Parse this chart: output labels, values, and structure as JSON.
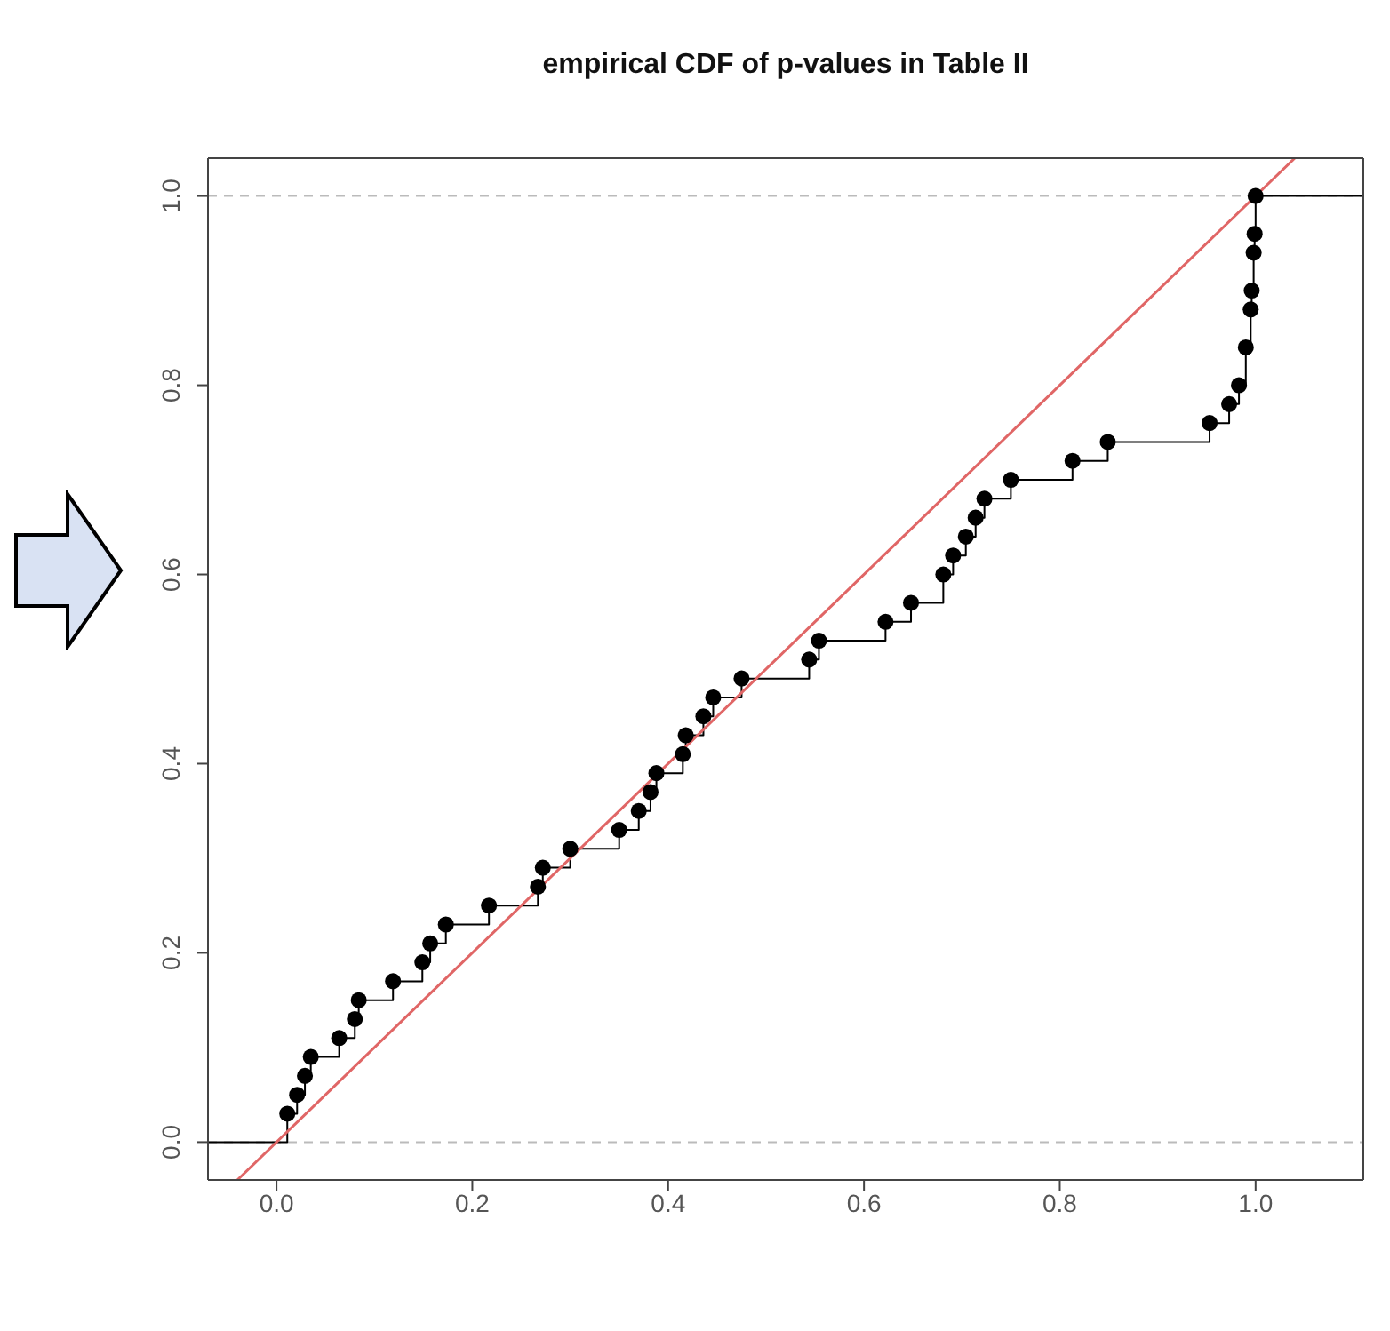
{
  "chart_data": {
    "type": "scatter",
    "title": "empirical CDF of p-values in Table II",
    "xlim": [
      -0.07,
      1.11
    ],
    "ylim": [
      -0.04,
      1.04
    ],
    "xticks": [
      {
        "value": 0,
        "label": "0.0"
      },
      0.2,
      0.4,
      0.6,
      0.8,
      {
        "value": 1,
        "label": "1.0"
      }
    ],
    "yticks": [
      {
        "value": 0,
        "label": "0.0"
      },
      0.2,
      0.4,
      0.6,
      0.8,
      {
        "value": 1,
        "label": "1.0"
      }
    ],
    "ref_lines": [
      {
        "axis": "y",
        "value": 0,
        "label": null,
        "color": "#bbbbbb",
        "line_style": "dashed"
      },
      {
        "axis": "y",
        "value": 1,
        "label": null,
        "color": "#bbbbbb",
        "line_style": "dashed"
      }
    ],
    "series": [
      {
        "type": "step",
        "color": "#000000",
        "marker": "none",
        "x": [
          -0.07,
          0.011,
          0.021,
          0.029,
          0.035,
          0.064,
          0.08,
          0.084,
          0.119,
          0.149,
          0.157,
          0.173,
          0.217,
          0.267,
          0.272,
          0.3,
          0.35,
          0.37,
          0.382,
          0.388,
          0.415,
          0.418,
          0.436,
          0.446,
          0.475,
          0.544,
          0.554,
          0.622,
          0.648,
          0.681,
          0.691,
          0.704,
          0.714,
          0.723,
          0.75,
          0.813,
          0.849,
          0.953,
          0.973,
          0.983,
          0.99,
          0.995,
          0.996,
          0.998,
          0.999,
          1.0,
          1.11
        ],
        "values": [
          0,
          0.03,
          0.05,
          0.07,
          0.09,
          0.11,
          0.13,
          0.15,
          0.17,
          0.19,
          0.21,
          0.23,
          0.25,
          0.27,
          0.29,
          0.31,
          0.33,
          0.35,
          0.37,
          0.39,
          0.41,
          0.43,
          0.45,
          0.47,
          0.49,
          0.51,
          0.53,
          0.55,
          0.57,
          0.6,
          0.62,
          0.64,
          0.66,
          0.68,
          0.7,
          0.72,
          0.74,
          0.76,
          0.78,
          0.8,
          0.84,
          0.88,
          0.9,
          0.94,
          0.96,
          1.0,
          1.0
        ]
      },
      {
        "color": "#000000",
        "marker": "circle",
        "x": [
          0.011,
          0.021,
          0.029,
          0.035,
          0.064,
          0.08,
          0.084,
          0.119,
          0.149,
          0.157,
          0.173,
          0.217,
          0.267,
          0.272,
          0.3,
          0.35,
          0.37,
          0.382,
          0.388,
          0.415,
          0.418,
          0.436,
          0.446,
          0.475,
          0.544,
          0.554,
          0.622,
          0.648,
          0.681,
          0.691,
          0.704,
          0.714,
          0.723,
          0.75,
          0.813,
          0.849,
          0.953,
          0.973,
          0.983,
          0.99,
          0.995,
          0.996,
          0.998,
          0.999,
          1.0
        ],
        "values": [
          0.03,
          0.05,
          0.07,
          0.09,
          0.11,
          0.13,
          0.15,
          0.17,
          0.19,
          0.21,
          0.23,
          0.25,
          0.27,
          0.29,
          0.31,
          0.33,
          0.35,
          0.37,
          0.39,
          0.41,
          0.43,
          0.45,
          0.47,
          0.49,
          0.51,
          0.53,
          0.55,
          0.57,
          0.6,
          0.62,
          0.64,
          0.66,
          0.68,
          0.7,
          0.72,
          0.74,
          0.76,
          0.78,
          0.8,
          0.84,
          0.88,
          0.9,
          0.94,
          0.96,
          1.0
        ]
      },
      {
        "type": "line",
        "color": "#e06666",
        "marker": "none",
        "x": [
          -0.04,
          1.04
        ],
        "values": [
          -0.04,
          1.04
        ]
      }
    ]
  }
}
